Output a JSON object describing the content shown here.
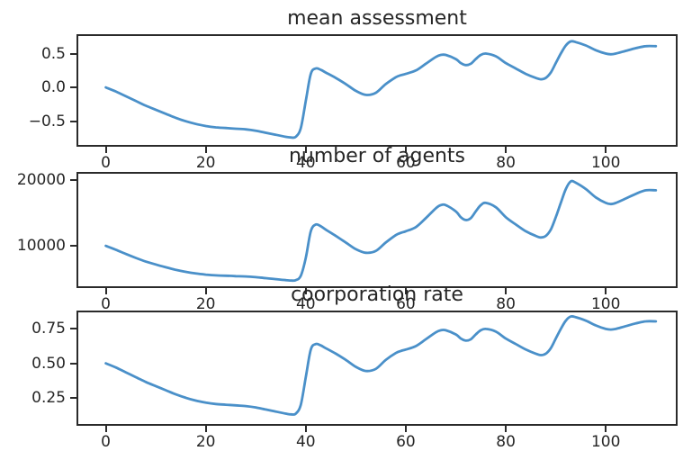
{
  "styles": {
    "background_color": "#ffffff",
    "text_color": "#262626",
    "axis_color": "#2a2a2a",
    "line_color": "#4a90c9"
  },
  "chart_data": [
    {
      "type": "line",
      "title": "mean assessment",
      "xlabel": "",
      "ylabel": "",
      "grid": false,
      "legend": null,
      "line_color": "#4a90c9",
      "xlim": [
        -5.5,
        114
      ],
      "ylim": [
        -0.85,
        0.76
      ],
      "xticks": [
        0,
        20,
        40,
        60,
        80,
        100
      ],
      "xtick_labels": [
        "0",
        "20",
        "40",
        "60",
        "80",
        "100"
      ],
      "yticks": [
        0.5,
        0.0,
        -0.5
      ],
      "ytick_labels": [
        "0.5",
        "0.0",
        "−0.5"
      ],
      "x": [
        0,
        2,
        4,
        6,
        8,
        10,
        12,
        14,
        16,
        18,
        20,
        22,
        24,
        26,
        28,
        30,
        32,
        34,
        36,
        37,
        38,
        39,
        40,
        41,
        42,
        43,
        44,
        46,
        48,
        50,
        52,
        54,
        56,
        58,
        59,
        60,
        62,
        64,
        66,
        67,
        68,
        70,
        71,
        72,
        73,
        74,
        75,
        76,
        78,
        80,
        82,
        84,
        86,
        87,
        88,
        89,
        90,
        91,
        92,
        93,
        94,
        96,
        98,
        100,
        101,
        102,
        104,
        106,
        108,
        110
      ],
      "values": [
        0.0,
        -0.06,
        -0.13,
        -0.2,
        -0.27,
        -0.33,
        -0.39,
        -0.45,
        -0.5,
        -0.54,
        -0.57,
        -0.59,
        -0.6,
        -0.61,
        -0.62,
        -0.64,
        -0.67,
        -0.7,
        -0.73,
        -0.74,
        -0.73,
        -0.6,
        -0.2,
        0.2,
        0.28,
        0.26,
        0.22,
        0.14,
        0.05,
        -0.05,
        -0.11,
        -0.08,
        0.05,
        0.15,
        0.18,
        0.2,
        0.25,
        0.35,
        0.45,
        0.48,
        0.48,
        0.42,
        0.36,
        0.33,
        0.35,
        0.42,
        0.48,
        0.5,
        0.46,
        0.36,
        0.28,
        0.2,
        0.14,
        0.12,
        0.14,
        0.22,
        0.36,
        0.5,
        0.62,
        0.68,
        0.67,
        0.62,
        0.55,
        0.5,
        0.49,
        0.5,
        0.54,
        0.58,
        0.61,
        0.61
      ]
    },
    {
      "type": "line",
      "title": "number of agents",
      "xlabel": "",
      "ylabel": "",
      "grid": false,
      "legend": null,
      "line_color": "#4a90c9",
      "xlim": [
        -5.5,
        114
      ],
      "ylim": [
        3900,
        20900
      ],
      "xticks": [
        0,
        20,
        40,
        60,
        80,
        100
      ],
      "xtick_labels": [
        "0",
        "20",
        "40",
        "60",
        "80",
        "100"
      ],
      "yticks": [
        20000,
        10000
      ],
      "ytick_labels": [
        "20000",
        "10000"
      ],
      "x": [
        0,
        2,
        4,
        6,
        8,
        10,
        12,
        14,
        16,
        18,
        20,
        22,
        24,
        26,
        28,
        30,
        32,
        34,
        36,
        37,
        38,
        39,
        40,
        41,
        42,
        43,
        44,
        46,
        48,
        50,
        52,
        54,
        56,
        58,
        59,
        60,
        62,
        64,
        66,
        67,
        68,
        70,
        71,
        72,
        73,
        74,
        75,
        76,
        78,
        80,
        82,
        84,
        86,
        87,
        88,
        89,
        90,
        91,
        92,
        93,
        94,
        96,
        98,
        100,
        101,
        102,
        104,
        106,
        108,
        110
      ],
      "values": [
        10000,
        9420,
        8780,
        8190,
        7630,
        7190,
        6770,
        6380,
        6070,
        5830,
        5660,
        5540,
        5490,
        5430,
        5380,
        5270,
        5120,
        4970,
        4820,
        4770,
        4820,
        5490,
        8190,
        12210,
        13230,
        12970,
        12460,
        11500,
        10510,
        9510,
        8960,
        9230,
        10510,
        11620,
        11970,
        12210,
        12840,
        14190,
        15680,
        16160,
        16160,
        15220,
        14330,
        13910,
        14190,
        15220,
        16160,
        16490,
        15840,
        14330,
        13230,
        12210,
        11500,
        11270,
        11500,
        12460,
        14330,
        16490,
        18590,
        19740,
        19540,
        18590,
        17330,
        16490,
        16320,
        16490,
        17160,
        17860,
        18400,
        18400
      ]
    },
    {
      "type": "line",
      "title": "coorporation rate",
      "xlabel": "",
      "ylabel": "",
      "grid": false,
      "legend": null,
      "line_color": "#4a90c9",
      "xlim": [
        -5.5,
        114
      ],
      "ylim": [
        0.06,
        0.87
      ],
      "xticks": [
        0,
        20,
        40,
        60,
        80,
        100
      ],
      "xtick_labels": [
        "0",
        "20",
        "40",
        "60",
        "80",
        "100"
      ],
      "yticks": [
        0.75,
        0.5,
        0.25
      ],
      "ytick_labels": [
        "0.75",
        "0.50",
        "0.25"
      ],
      "x": [
        0,
        2,
        4,
        6,
        8,
        10,
        12,
        14,
        16,
        18,
        20,
        22,
        24,
        26,
        28,
        30,
        32,
        34,
        36,
        37,
        38,
        39,
        40,
        41,
        42,
        43,
        44,
        46,
        48,
        50,
        52,
        54,
        56,
        58,
        59,
        60,
        62,
        64,
        66,
        67,
        68,
        70,
        71,
        72,
        73,
        74,
        75,
        76,
        78,
        80,
        82,
        84,
        86,
        87,
        88,
        89,
        90,
        91,
        92,
        93,
        94,
        96,
        98,
        100,
        101,
        102,
        104,
        106,
        108,
        110
      ],
      "values": [
        0.5,
        0.47,
        0.435,
        0.4,
        0.365,
        0.335,
        0.305,
        0.275,
        0.25,
        0.23,
        0.215,
        0.205,
        0.2,
        0.195,
        0.19,
        0.18,
        0.165,
        0.15,
        0.135,
        0.13,
        0.135,
        0.2,
        0.4,
        0.6,
        0.64,
        0.63,
        0.61,
        0.57,
        0.525,
        0.475,
        0.445,
        0.46,
        0.525,
        0.575,
        0.59,
        0.6,
        0.625,
        0.675,
        0.725,
        0.74,
        0.74,
        0.71,
        0.68,
        0.665,
        0.675,
        0.71,
        0.74,
        0.75,
        0.73,
        0.68,
        0.64,
        0.6,
        0.57,
        0.56,
        0.57,
        0.61,
        0.68,
        0.75,
        0.81,
        0.84,
        0.835,
        0.81,
        0.775,
        0.75,
        0.745,
        0.75,
        0.77,
        0.79,
        0.805,
        0.805
      ]
    }
  ]
}
